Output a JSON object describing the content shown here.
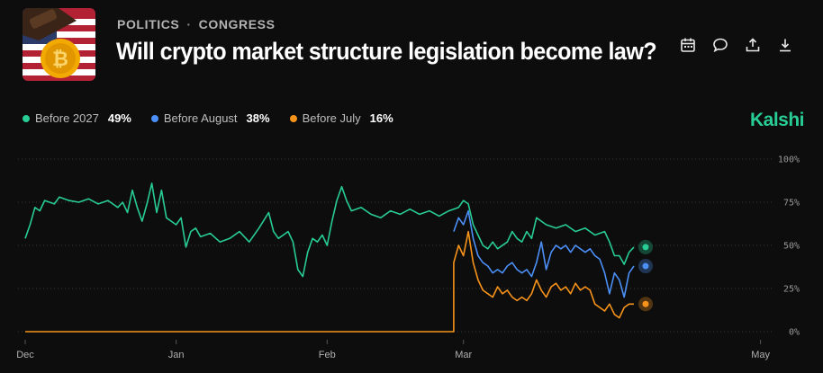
{
  "header": {
    "category": "POLITICS",
    "separator": "·",
    "subcategory": "CONGRESS",
    "title": "Will crypto market structure legislation become law?",
    "brand": "Kalshi"
  },
  "actions": [
    {
      "icon": "calendar-icon"
    },
    {
      "icon": "comment-icon"
    },
    {
      "icon": "share-icon"
    },
    {
      "icon": "download-icon"
    }
  ],
  "legend": [
    {
      "name": "Before 2027",
      "value": "49%",
      "color": "#28cc95"
    },
    {
      "name": "Before August",
      "value": "38%",
      "color": "#4b8ff7"
    },
    {
      "name": "Before July",
      "value": "16%",
      "color": "#f7931a"
    }
  ],
  "chart_data": {
    "type": "line",
    "y_ticks": [
      "100%",
      "75%",
      "50%",
      "25%",
      "0%"
    ],
    "y_tick_values": [
      100,
      75,
      50,
      25,
      0
    ],
    "ylim": [
      0,
      100
    ],
    "x_ticks": [
      {
        "label": "Dec",
        "t": 0
      },
      {
        "label": "Jan",
        "t": 31
      },
      {
        "label": "Feb",
        "t": 62
      },
      {
        "label": "Mar",
        "t": 90
      },
      {
        "label": "May",
        "t": 151
      }
    ],
    "xlim": [
      0,
      152
    ],
    "grid": true,
    "legend_position": "top-left",
    "series": [
      {
        "name": "Before 2027",
        "color": "#28cc95",
        "points": [
          [
            0,
            54
          ],
          [
            1,
            62
          ],
          [
            2,
            72
          ],
          [
            3,
            70
          ],
          [
            4,
            76
          ],
          [
            6,
            74
          ],
          [
            7,
            78
          ],
          [
            9,
            76
          ],
          [
            11,
            75
          ],
          [
            13,
            77
          ],
          [
            15,
            74
          ],
          [
            17,
            76
          ],
          [
            19,
            72
          ],
          [
            20,
            75
          ],
          [
            21,
            69
          ],
          [
            22,
            82
          ],
          [
            23,
            72
          ],
          [
            24,
            64
          ],
          [
            25,
            74
          ],
          [
            26,
            86
          ],
          [
            27,
            69
          ],
          [
            28,
            82
          ],
          [
            29,
            66
          ],
          [
            31,
            62
          ],
          [
            32,
            66
          ],
          [
            33,
            49
          ],
          [
            34,
            58
          ],
          [
            35,
            60
          ],
          [
            36,
            55
          ],
          [
            38,
            57
          ],
          [
            40,
            52
          ],
          [
            42,
            54
          ],
          [
            44,
            58
          ],
          [
            46,
            52
          ],
          [
            48,
            60
          ],
          [
            50,
            69
          ],
          [
            51,
            58
          ],
          [
            52,
            54
          ],
          [
            54,
            58
          ],
          [
            55,
            52
          ],
          [
            56,
            36
          ],
          [
            57,
            32
          ],
          [
            58,
            46
          ],
          [
            59,
            54
          ],
          [
            60,
            52
          ],
          [
            61,
            56
          ],
          [
            62,
            50
          ],
          [
            63,
            64
          ],
          [
            64,
            76
          ],
          [
            65,
            84
          ],
          [
            66,
            76
          ],
          [
            67,
            70
          ],
          [
            69,
            72
          ],
          [
            71,
            68
          ],
          [
            73,
            66
          ],
          [
            75,
            70
          ],
          [
            77,
            68
          ],
          [
            79,
            71
          ],
          [
            81,
            68
          ],
          [
            83,
            70
          ],
          [
            85,
            67
          ],
          [
            87,
            70
          ],
          [
            89,
            72
          ],
          [
            90,
            76
          ],
          [
            91,
            74
          ],
          [
            92,
            62
          ],
          [
            93,
            56
          ],
          [
            94,
            50
          ],
          [
            95,
            48
          ],
          [
            96,
            52
          ],
          [
            97,
            48
          ],
          [
            99,
            52
          ],
          [
            100,
            58
          ],
          [
            101,
            54
          ],
          [
            102,
            52
          ],
          [
            103,
            58
          ],
          [
            104,
            54
          ],
          [
            105,
            66
          ],
          [
            106,
            64
          ],
          [
            107,
            62
          ],
          [
            109,
            60
          ],
          [
            111,
            62
          ],
          [
            113,
            58
          ],
          [
            115,
            60
          ],
          [
            117,
            56
          ],
          [
            119,
            58
          ],
          [
            120,
            52
          ],
          [
            121,
            44
          ],
          [
            122,
            44
          ],
          [
            123,
            39
          ],
          [
            124,
            46
          ],
          [
            125,
            49
          ]
        ]
      },
      {
        "name": "Before August",
        "color": "#4b8ff7",
        "points": [
          [
            88,
            58
          ],
          [
            89,
            66
          ],
          [
            90,
            62
          ],
          [
            91,
            70
          ],
          [
            92,
            54
          ],
          [
            93,
            44
          ],
          [
            94,
            40
          ],
          [
            95,
            38
          ],
          [
            96,
            34
          ],
          [
            97,
            36
          ],
          [
            98,
            34
          ],
          [
            99,
            38
          ],
          [
            100,
            40
          ],
          [
            101,
            36
          ],
          [
            102,
            34
          ],
          [
            103,
            36
          ],
          [
            104,
            32
          ],
          [
            105,
            40
          ],
          [
            106,
            52
          ],
          [
            107,
            36
          ],
          [
            108,
            46
          ],
          [
            109,
            50
          ],
          [
            110,
            48
          ],
          [
            111,
            50
          ],
          [
            112,
            46
          ],
          [
            113,
            50
          ],
          [
            114,
            48
          ],
          [
            115,
            46
          ],
          [
            116,
            48
          ],
          [
            117,
            44
          ],
          [
            118,
            42
          ],
          [
            119,
            34
          ],
          [
            120,
            22
          ],
          [
            121,
            34
          ],
          [
            122,
            30
          ],
          [
            123,
            20
          ],
          [
            124,
            34
          ],
          [
            125,
            38
          ]
        ]
      },
      {
        "name": "Before July",
        "color": "#f7931a",
        "points": [
          [
            0,
            0
          ],
          [
            88,
            0
          ],
          [
            88,
            40
          ],
          [
            89,
            50
          ],
          [
            90,
            44
          ],
          [
            91,
            58
          ],
          [
            92,
            40
          ],
          [
            93,
            30
          ],
          [
            94,
            24
          ],
          [
            95,
            22
          ],
          [
            96,
            20
          ],
          [
            97,
            26
          ],
          [
            98,
            22
          ],
          [
            99,
            24
          ],
          [
            100,
            20
          ],
          [
            101,
            18
          ],
          [
            102,
            20
          ],
          [
            103,
            18
          ],
          [
            104,
            22
          ],
          [
            105,
            30
          ],
          [
            106,
            24
          ],
          [
            107,
            20
          ],
          [
            108,
            26
          ],
          [
            109,
            28
          ],
          [
            110,
            24
          ],
          [
            111,
            26
          ],
          [
            112,
            22
          ],
          [
            113,
            28
          ],
          [
            114,
            24
          ],
          [
            115,
            26
          ],
          [
            116,
            24
          ],
          [
            117,
            16
          ],
          [
            118,
            14
          ],
          [
            119,
            12
          ],
          [
            120,
            16
          ],
          [
            121,
            10
          ],
          [
            122,
            8
          ],
          [
            123,
            14
          ],
          [
            124,
            16
          ],
          [
            125,
            16
          ]
        ]
      }
    ]
  }
}
